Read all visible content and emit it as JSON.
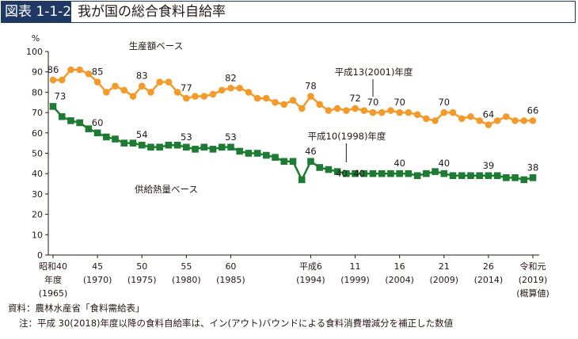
{
  "header": {
    "figure_label": "図表 1-1-2",
    "title": "我が国の総合食料自給率"
  },
  "notes": {
    "source": "資料：農林水産省「食料需給表」",
    "note": "注：平成 30(2018)年度以降の食料自給率は、イン(アウト)バウンドによる食料消費増減分を補正した数値"
  },
  "colors": {
    "production": "#f39a2b",
    "supply": "#1e7b34",
    "header_bg": "#1f3864",
    "axis": "#231815"
  },
  "chart_data": {
    "type": "line",
    "title": "",
    "ylabel": "%",
    "ylim": [
      0,
      100
    ],
    "yticks": [
      0,
      10,
      20,
      30,
      40,
      50,
      60,
      70,
      80,
      90,
      100
    ],
    "x_ticks": [
      {
        "year": 1965,
        "lines": [
          "昭和40",
          "年度",
          "(1965)"
        ]
      },
      {
        "year": 1970,
        "lines": [
          "45",
          "(1970)"
        ]
      },
      {
        "year": 1975,
        "lines": [
          "50",
          "(1975)"
        ]
      },
      {
        "year": 1980,
        "lines": [
          "55",
          "(1980)"
        ]
      },
      {
        "year": 1985,
        "lines": [
          "60",
          "(1985)"
        ]
      },
      {
        "year": 1994,
        "lines": [
          "平成6",
          "(1994)"
        ]
      },
      {
        "year": 1999,
        "lines": [
          "11",
          "(1999)"
        ]
      },
      {
        "year": 2004,
        "lines": [
          "16",
          "(2004)"
        ]
      },
      {
        "year": 2009,
        "lines": [
          "21",
          "(2009)"
        ]
      },
      {
        "year": 2014,
        "lines": [
          "26",
          "(2014)"
        ]
      },
      {
        "year": 2019,
        "lines": [
          "令和元",
          "(2019)",
          "(概算値)"
        ]
      }
    ],
    "x": [
      1965,
      1966,
      1967,
      1968,
      1969,
      1970,
      1971,
      1972,
      1973,
      1974,
      1975,
      1976,
      1977,
      1978,
      1979,
      1980,
      1981,
      1982,
      1983,
      1984,
      1985,
      1986,
      1987,
      1988,
      1989,
      1990,
      1991,
      1992,
      1993,
      1994,
      1995,
      1996,
      1997,
      1998,
      1999,
      2000,
      2001,
      2002,
      2003,
      2004,
      2005,
      2006,
      2007,
      2008,
      2009,
      2010,
      2011,
      2012,
      2013,
      2014,
      2015,
      2016,
      2017,
      2018,
      2019
    ],
    "series": [
      {
        "name": "生産額ベース",
        "key": "production",
        "values": [
          86,
          86,
          91,
          91,
          89,
          85,
          80,
          83,
          81,
          78,
          83,
          80,
          85,
          85,
          80,
          77,
          78,
          78,
          79,
          81,
          82,
          82,
          80,
          77,
          77,
          75,
          74,
          76,
          72,
          78,
          74,
          71,
          72,
          71,
          72,
          71,
          70,
          70,
          71,
          70,
          70,
          69,
          67,
          66,
          70,
          70,
          67,
          68,
          66,
          64,
          66,
          68,
          66,
          66,
          66
        ]
      },
      {
        "name": "供給熱量ベース",
        "key": "supply",
        "values": [
          73,
          68,
          66,
          65,
          62,
          60,
          58,
          57,
          55,
          55,
          54,
          53,
          53,
          54,
          54,
          53,
          52,
          53,
          52,
          53,
          53,
          51,
          50,
          50,
          49,
          48,
          46,
          46,
          37,
          46,
          43,
          42,
          41,
          40,
          40,
          40,
          40,
          40,
          40,
          40,
          40,
          39,
          40,
          41,
          40,
          39,
          39,
          39,
          39,
          39,
          39,
          38,
          38,
          37,
          38
        ]
      }
    ],
    "data_labels": [
      {
        "series": "production",
        "year": 1965,
        "text": "86"
      },
      {
        "series": "production",
        "year": 1970,
        "text": "85"
      },
      {
        "series": "production",
        "year": 1975,
        "text": "83"
      },
      {
        "series": "production",
        "year": 1980,
        "text": "77"
      },
      {
        "series": "production",
        "year": 1985,
        "text": "82"
      },
      {
        "series": "production",
        "year": 1994,
        "text": "78"
      },
      {
        "series": "production",
        "year": 1999,
        "text": "72"
      },
      {
        "series": "production",
        "year": 2001,
        "text": "70"
      },
      {
        "series": "production",
        "year": 2004,
        "text": "70"
      },
      {
        "series": "production",
        "year": 2009,
        "text": "70"
      },
      {
        "series": "production",
        "year": 2014,
        "text": "64"
      },
      {
        "series": "production",
        "year": 2019,
        "text": "66"
      },
      {
        "series": "supply",
        "year": 1965,
        "text": "73"
      },
      {
        "series": "supply",
        "year": 1970,
        "text": "60"
      },
      {
        "series": "supply",
        "year": 1975,
        "text": "54"
      },
      {
        "series": "supply",
        "year": 1980,
        "text": "53"
      },
      {
        "series": "supply",
        "year": 1985,
        "text": "53"
      },
      {
        "series": "supply",
        "year": 1994,
        "text": "46"
      },
      {
        "series": "supply",
        "year": 1998,
        "text": "40"
      },
      {
        "series": "supply",
        "year": 1999,
        "text": "40"
      },
      {
        "series": "supply",
        "year": 2004,
        "text": "40"
      },
      {
        "series": "supply",
        "year": 2009,
        "text": "40"
      },
      {
        "series": "supply",
        "year": 2014,
        "text": "39"
      },
      {
        "series": "supply",
        "year": 2019,
        "text": "38"
      }
    ],
    "annotations": [
      {
        "text": "生産額ベース",
        "series": "production"
      },
      {
        "text": "平成13(2001)年度",
        "series": "production",
        "year": 2001
      },
      {
        "text": "平成10(1998)年度",
        "series": "supply",
        "year": 1998
      },
      {
        "text": "供給熱量ベース",
        "series": "supply"
      }
    ],
    "grid": false,
    "legend": "none"
  }
}
